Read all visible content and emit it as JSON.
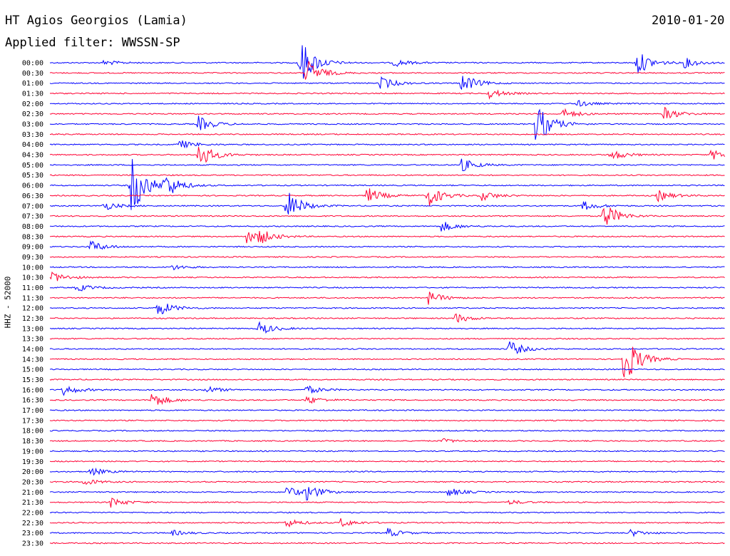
{
  "header": {
    "station": "HT Agios Georgios (Lamia)",
    "filter": "Applied filter: WWSSN-SP",
    "date": "2010-01-20"
  },
  "chart_data": {
    "type": "line",
    "title": "HT Agios Georgios (Lamia)",
    "subtitle": "Applied filter: WWSSN-SP",
    "date": "2010-01-20",
    "ylabel": "HHZ - 52000",
    "colors": {
      "even": "#0000ff",
      "odd": "#ff0033"
    },
    "row_labels": [
      "00:00",
      "00:30",
      "01:00",
      "01:30",
      "02:00",
      "02:30",
      "03:00",
      "03:30",
      "04:00",
      "04:30",
      "05:00",
      "05:30",
      "06:00",
      "06:30",
      "07:00",
      "07:30",
      "08:00",
      "08:30",
      "09:00",
      "09:30",
      "10:00",
      "10:30",
      "11:00",
      "11:30",
      "12:00",
      "12:30",
      "13:00",
      "13:30",
      "14:00",
      "14:30",
      "15:00",
      "15:30",
      "16:00",
      "16:30",
      "17:00",
      "17:30",
      "18:00",
      "18:30",
      "19:00",
      "19:30",
      "20:00",
      "20:30",
      "21:00",
      "21:30",
      "22:00",
      "22:30",
      "23:00",
      "23:30"
    ],
    "events": [
      {
        "row": 0,
        "x": 0.87,
        "amp": 2.2
      },
      {
        "row": 0,
        "x": 0.08,
        "amp": 0.5
      },
      {
        "row": 0,
        "x": 0.94,
        "amp": 0.9
      },
      {
        "row": 0,
        "x": 0.51,
        "amp": 0.7
      },
      {
        "row": 0,
        "x": 0.37,
        "amp": 4.5
      },
      {
        "row": 1,
        "x": 0.38,
        "amp": 2.5
      },
      {
        "row": 2,
        "x": 0.49,
        "amp": 1.2
      },
      {
        "row": 2,
        "x": 0.61,
        "amp": 1.8
      },
      {
        "row": 3,
        "x": 0.65,
        "amp": 0.9
      },
      {
        "row": 4,
        "x": 0.78,
        "amp": 0.6
      },
      {
        "row": 5,
        "x": 0.91,
        "amp": 1.2
      },
      {
        "row": 5,
        "x": 0.76,
        "amp": 0.9
      },
      {
        "row": 6,
        "x": 0.22,
        "amp": 1.4
      },
      {
        "row": 6,
        "x": 0.72,
        "amp": 4
      },
      {
        "row": 8,
        "x": 0.19,
        "amp": 0.9
      },
      {
        "row": 9,
        "x": 0.22,
        "amp": 2.5
      },
      {
        "row": 9,
        "x": 0.83,
        "amp": 1.1
      },
      {
        "row": 9,
        "x": 0.98,
        "amp": 1
      },
      {
        "row": 10,
        "x": 0.61,
        "amp": 1.2
      },
      {
        "row": 12,
        "x": 0.12,
        "amp": 6
      },
      {
        "row": 12,
        "x": 0.17,
        "amp": 2.2
      },
      {
        "row": 13,
        "x": 0.47,
        "amp": 1.5
      },
      {
        "row": 13,
        "x": 0.56,
        "amp": 2
      },
      {
        "row": 13,
        "x": 0.64,
        "amp": 0.9
      },
      {
        "row": 13,
        "x": 0.9,
        "amp": 1
      },
      {
        "row": 14,
        "x": 0.08,
        "amp": 0.8
      },
      {
        "row": 14,
        "x": 0.35,
        "amp": 3
      },
      {
        "row": 14,
        "x": 0.79,
        "amp": 0.9
      },
      {
        "row": 15,
        "x": 0.82,
        "amp": 2.5
      },
      {
        "row": 16,
        "x": 0.58,
        "amp": 1
      },
      {
        "row": 17,
        "x": 0.29,
        "amp": 1.2
      },
      {
        "row": 17,
        "x": 0.31,
        "amp": 1.1
      },
      {
        "row": 18,
        "x": 0.06,
        "amp": 1.1
      },
      {
        "row": 20,
        "x": 0.18,
        "amp": 0.5
      },
      {
        "row": 21,
        "x": 0.0,
        "amp": 1.2
      },
      {
        "row": 22,
        "x": 0.04,
        "amp": 0.7
      },
      {
        "row": 23,
        "x": 0.56,
        "amp": 1.2
      },
      {
        "row": 24,
        "x": 0.16,
        "amp": 1.5
      },
      {
        "row": 25,
        "x": 0.6,
        "amp": 0.9
      },
      {
        "row": 26,
        "x": 0.31,
        "amp": 1.2
      },
      {
        "row": 28,
        "x": 0.68,
        "amp": 1.5
      },
      {
        "row": 29,
        "x": 0.85,
        "amp": 5
      },
      {
        "row": 32,
        "x": 0.02,
        "amp": 1
      },
      {
        "row": 32,
        "x": 0.23,
        "amp": 0.7
      },
      {
        "row": 32,
        "x": 0.38,
        "amp": 0.8
      },
      {
        "row": 33,
        "x": 0.15,
        "amp": 1.5
      },
      {
        "row": 33,
        "x": 0.38,
        "amp": 0.8
      },
      {
        "row": 37,
        "x": 0.58,
        "amp": 0.4
      },
      {
        "row": 40,
        "x": 0.06,
        "amp": 0.7
      },
      {
        "row": 41,
        "x": 0.05,
        "amp": 0.6
      },
      {
        "row": 42,
        "x": 0.35,
        "amp": 1.1
      },
      {
        "row": 42,
        "x": 0.38,
        "amp": 1.4
      },
      {
        "row": 42,
        "x": 0.59,
        "amp": 0.8
      },
      {
        "row": 43,
        "x": 0.09,
        "amp": 0.9
      },
      {
        "row": 43,
        "x": 0.68,
        "amp": 0.4
      },
      {
        "row": 45,
        "x": 0.35,
        "amp": 0.8
      },
      {
        "row": 45,
        "x": 0.43,
        "amp": 0.8
      },
      {
        "row": 46,
        "x": 0.18,
        "amp": 0.5
      },
      {
        "row": 46,
        "x": 0.5,
        "amp": 0.8
      },
      {
        "row": 46,
        "x": 0.86,
        "amp": 0.6
      }
    ]
  }
}
